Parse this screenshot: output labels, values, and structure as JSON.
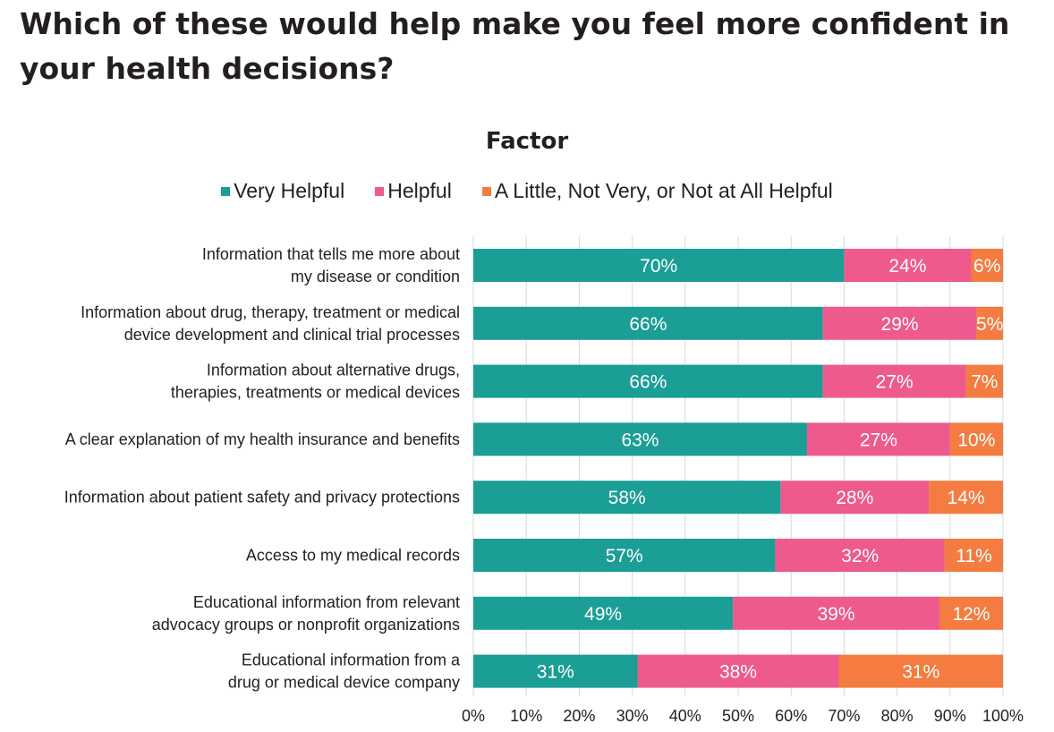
{
  "page": {
    "title": "Which of these would help make you feel more confident in your health decisions?"
  },
  "chart_data": {
    "type": "bar",
    "orientation": "horizontal",
    "stacked": true,
    "title": "Factor",
    "legend_position": "top",
    "grid": "vertical",
    "categories": [
      [
        "Information that tells me more about",
        "my disease or condition"
      ],
      [
        "Information about drug, therapy, treatment or medical",
        "device development and clinical trial processes"
      ],
      [
        "Information about alternative drugs,",
        "therapies, treatments or medical devices"
      ],
      [
        "A clear explanation of my health insurance and benefits"
      ],
      [
        "Information about patient safety and privacy protections"
      ],
      [
        "Access to my medical records"
      ],
      [
        "Educational information from relevant",
        "advocacy groups or nonprofit organizations"
      ],
      [
        "Educational information from a",
        "drug or medical device company"
      ]
    ],
    "series": [
      {
        "name": "Very Helpful",
        "color": "#1a9e96",
        "values": [
          70,
          66,
          66,
          63,
          58,
          57,
          49,
          31
        ],
        "labels": [
          "70%",
          "66%",
          "66%",
          "63%",
          "58%",
          "57%",
          "49%",
          "31%"
        ]
      },
      {
        "name": "Helpful",
        "color": "#ee5a8e",
        "values": [
          24,
          29,
          27,
          27,
          28,
          32,
          39,
          38
        ],
        "labels": [
          "24%",
          "29%",
          "27%",
          "27%",
          "28%",
          "32%",
          "39%",
          "38%"
        ]
      },
      {
        "name": "A Little, Not Very, or Not at All Helpful",
        "color": "#f47c40",
        "values": [
          6,
          5,
          7,
          10,
          14,
          11,
          12,
          31
        ],
        "labels": [
          "6%",
          "5%",
          "7%",
          "10%",
          "14%",
          "11%",
          "12%",
          "31%"
        ]
      }
    ],
    "xlim": [
      0,
      100
    ],
    "xticks": [
      "0%",
      "10%",
      "20%",
      "30%",
      "40%",
      "50%",
      "60%",
      "70%",
      "80%",
      "90%",
      "100%"
    ]
  }
}
